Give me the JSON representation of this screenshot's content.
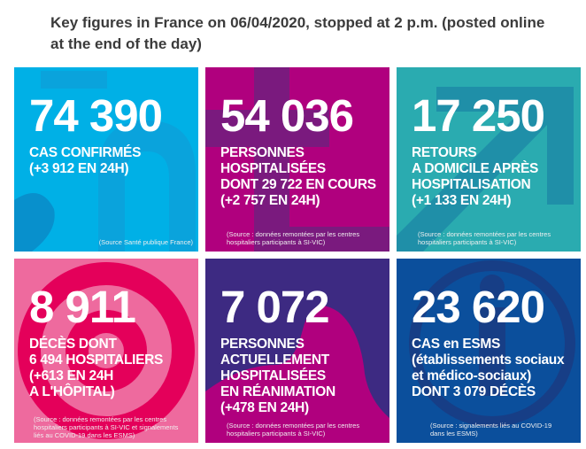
{
  "title": "Key figures in France on 06/04/2020, stopped at 2 p.m. (posted online at the end of the day)",
  "tiles": [
    {
      "number": "74 390",
      "label": "CAS CONFIRMÉS\n(+3 912 EN 24H)",
      "source": "(Source Santé publique France)",
      "color": "#00b0e6"
    },
    {
      "number": "54 036",
      "label": "PERSONNES\nHOSPITALISÉES\nDONT 29 722 EN COURS\n(+2 757 EN 24H)",
      "source": "(Source : données remontées par les centres\nhospitaliers participants à SI-VIC)",
      "color": "#b0007e"
    },
    {
      "number": "17 250",
      "label": "RETOURS\nA DOMICILE APRÈS\nHOSPITALISATION\n(+1 133 EN 24H)",
      "source": "(Source : données remontées par les centres\nhospitaliers participants à SI-VIC)",
      "color": "#2aabb0"
    },
    {
      "number": "8 911",
      "label": "DÉCÈS DONT\n6 494 HOSPITALIERS\n(+613 EN 24H\nA L'HÔPITAL)",
      "source": "(Source : données remontées par les centres\nhospitaliers participants à SI-VIC et signalements\nliés au COVID-19 dans les ESMS)",
      "color": "#e4005a"
    },
    {
      "number": "7 072",
      "label": "PERSONNES\nACTUELLEMENT\nHOSPITALISÉES\nEN RÉANIMATION\n(+478 EN 24H)",
      "source": "(Source : données remontées par les centres\nhospitaliers participants à SI-VIC)",
      "color": "#3d2a82"
    },
    {
      "number": "23 620",
      "label": "CAS en ESMS\n(établissements sociaux\net médico-sociaux)\nDONT 3 079 DÉCÈS",
      "source": "(Source : signalements liés au COVID-19\ndans les ESMS)",
      "color": "#0b4f9c"
    }
  ]
}
